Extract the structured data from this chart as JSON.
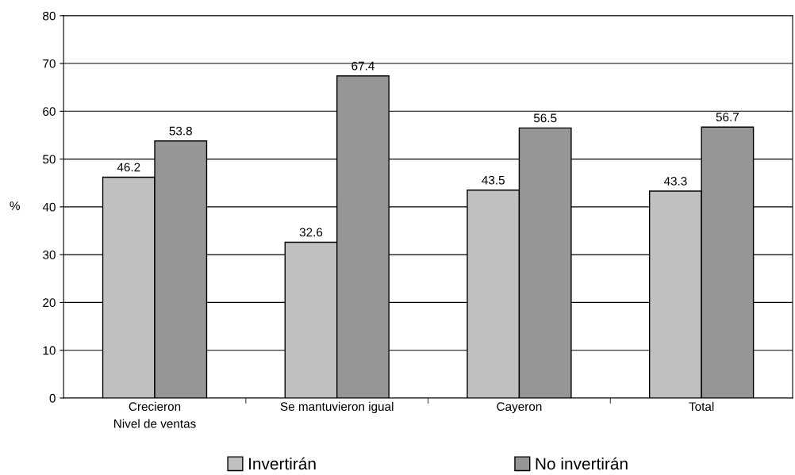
{
  "chart_data": {
    "type": "bar",
    "ylabel": "%",
    "xlabel": "Nivel de ventas",
    "categories": [
      "Crecieron",
      "Se mantuvieron igual",
      "Cayeron",
      "Total"
    ],
    "series": [
      {
        "name": "Invertirán",
        "color": "#c0c0c0",
        "values": [
          46.2,
          32.6,
          43.5,
          43.3
        ]
      },
      {
        "name": "No invertirán",
        "color": "#969696",
        "values": [
          53.8,
          67.4,
          56.5,
          56.7
        ]
      }
    ],
    "ylim": [
      0,
      80
    ],
    "yticks": [
      0,
      10,
      20,
      30,
      40,
      50,
      60,
      70,
      80
    ],
    "grid": "y",
    "legend": "bottom",
    "data_labels": true
  }
}
